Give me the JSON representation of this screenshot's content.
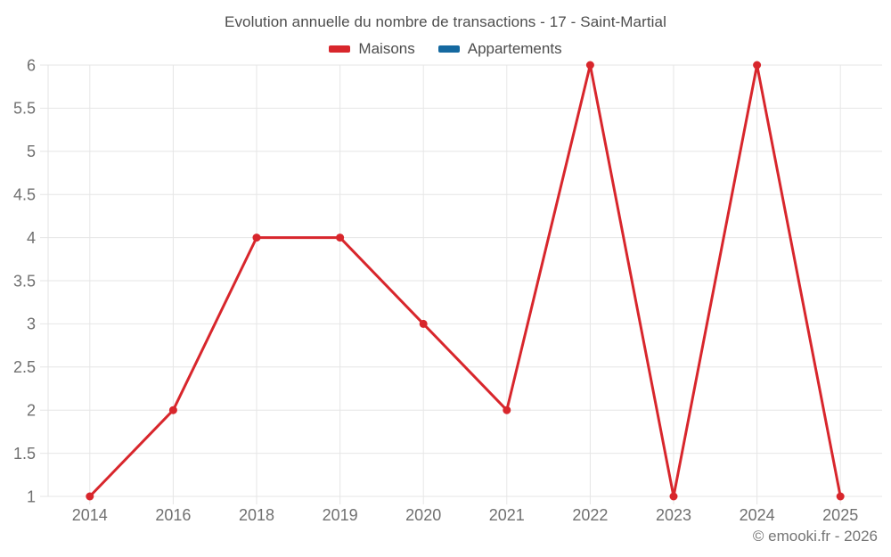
{
  "chart_data": {
    "type": "line",
    "title": "Evolution annuelle du nombre de transactions - 17 - Saint-Martial",
    "footer": "© emooki.fr - 2026",
    "categories": [
      "2014",
      "2016",
      "2018",
      "2019",
      "2020",
      "2021",
      "2022",
      "2023",
      "2024",
      "2025"
    ],
    "series": [
      {
        "name": "Maisons",
        "color": "#d8262c",
        "values": [
          1,
          2,
          4,
          4,
          3,
          2,
          6,
          1,
          6,
          1
        ]
      },
      {
        "name": "Appartements",
        "color": "#1569a0",
        "values": []
      }
    ],
    "xlabel": "",
    "ylabel": "",
    "ylim": [
      1,
      6
    ],
    "ytick_step": 0.5,
    "grid": true,
    "legend_position": "top",
    "colors": {
      "grid": "#e6e6e6",
      "axis_border": "#e3e3e3",
      "axis_text": "#707070",
      "title_text": "#4d4d4d",
      "footer_text": "#757575",
      "background": "#ffffff"
    }
  }
}
